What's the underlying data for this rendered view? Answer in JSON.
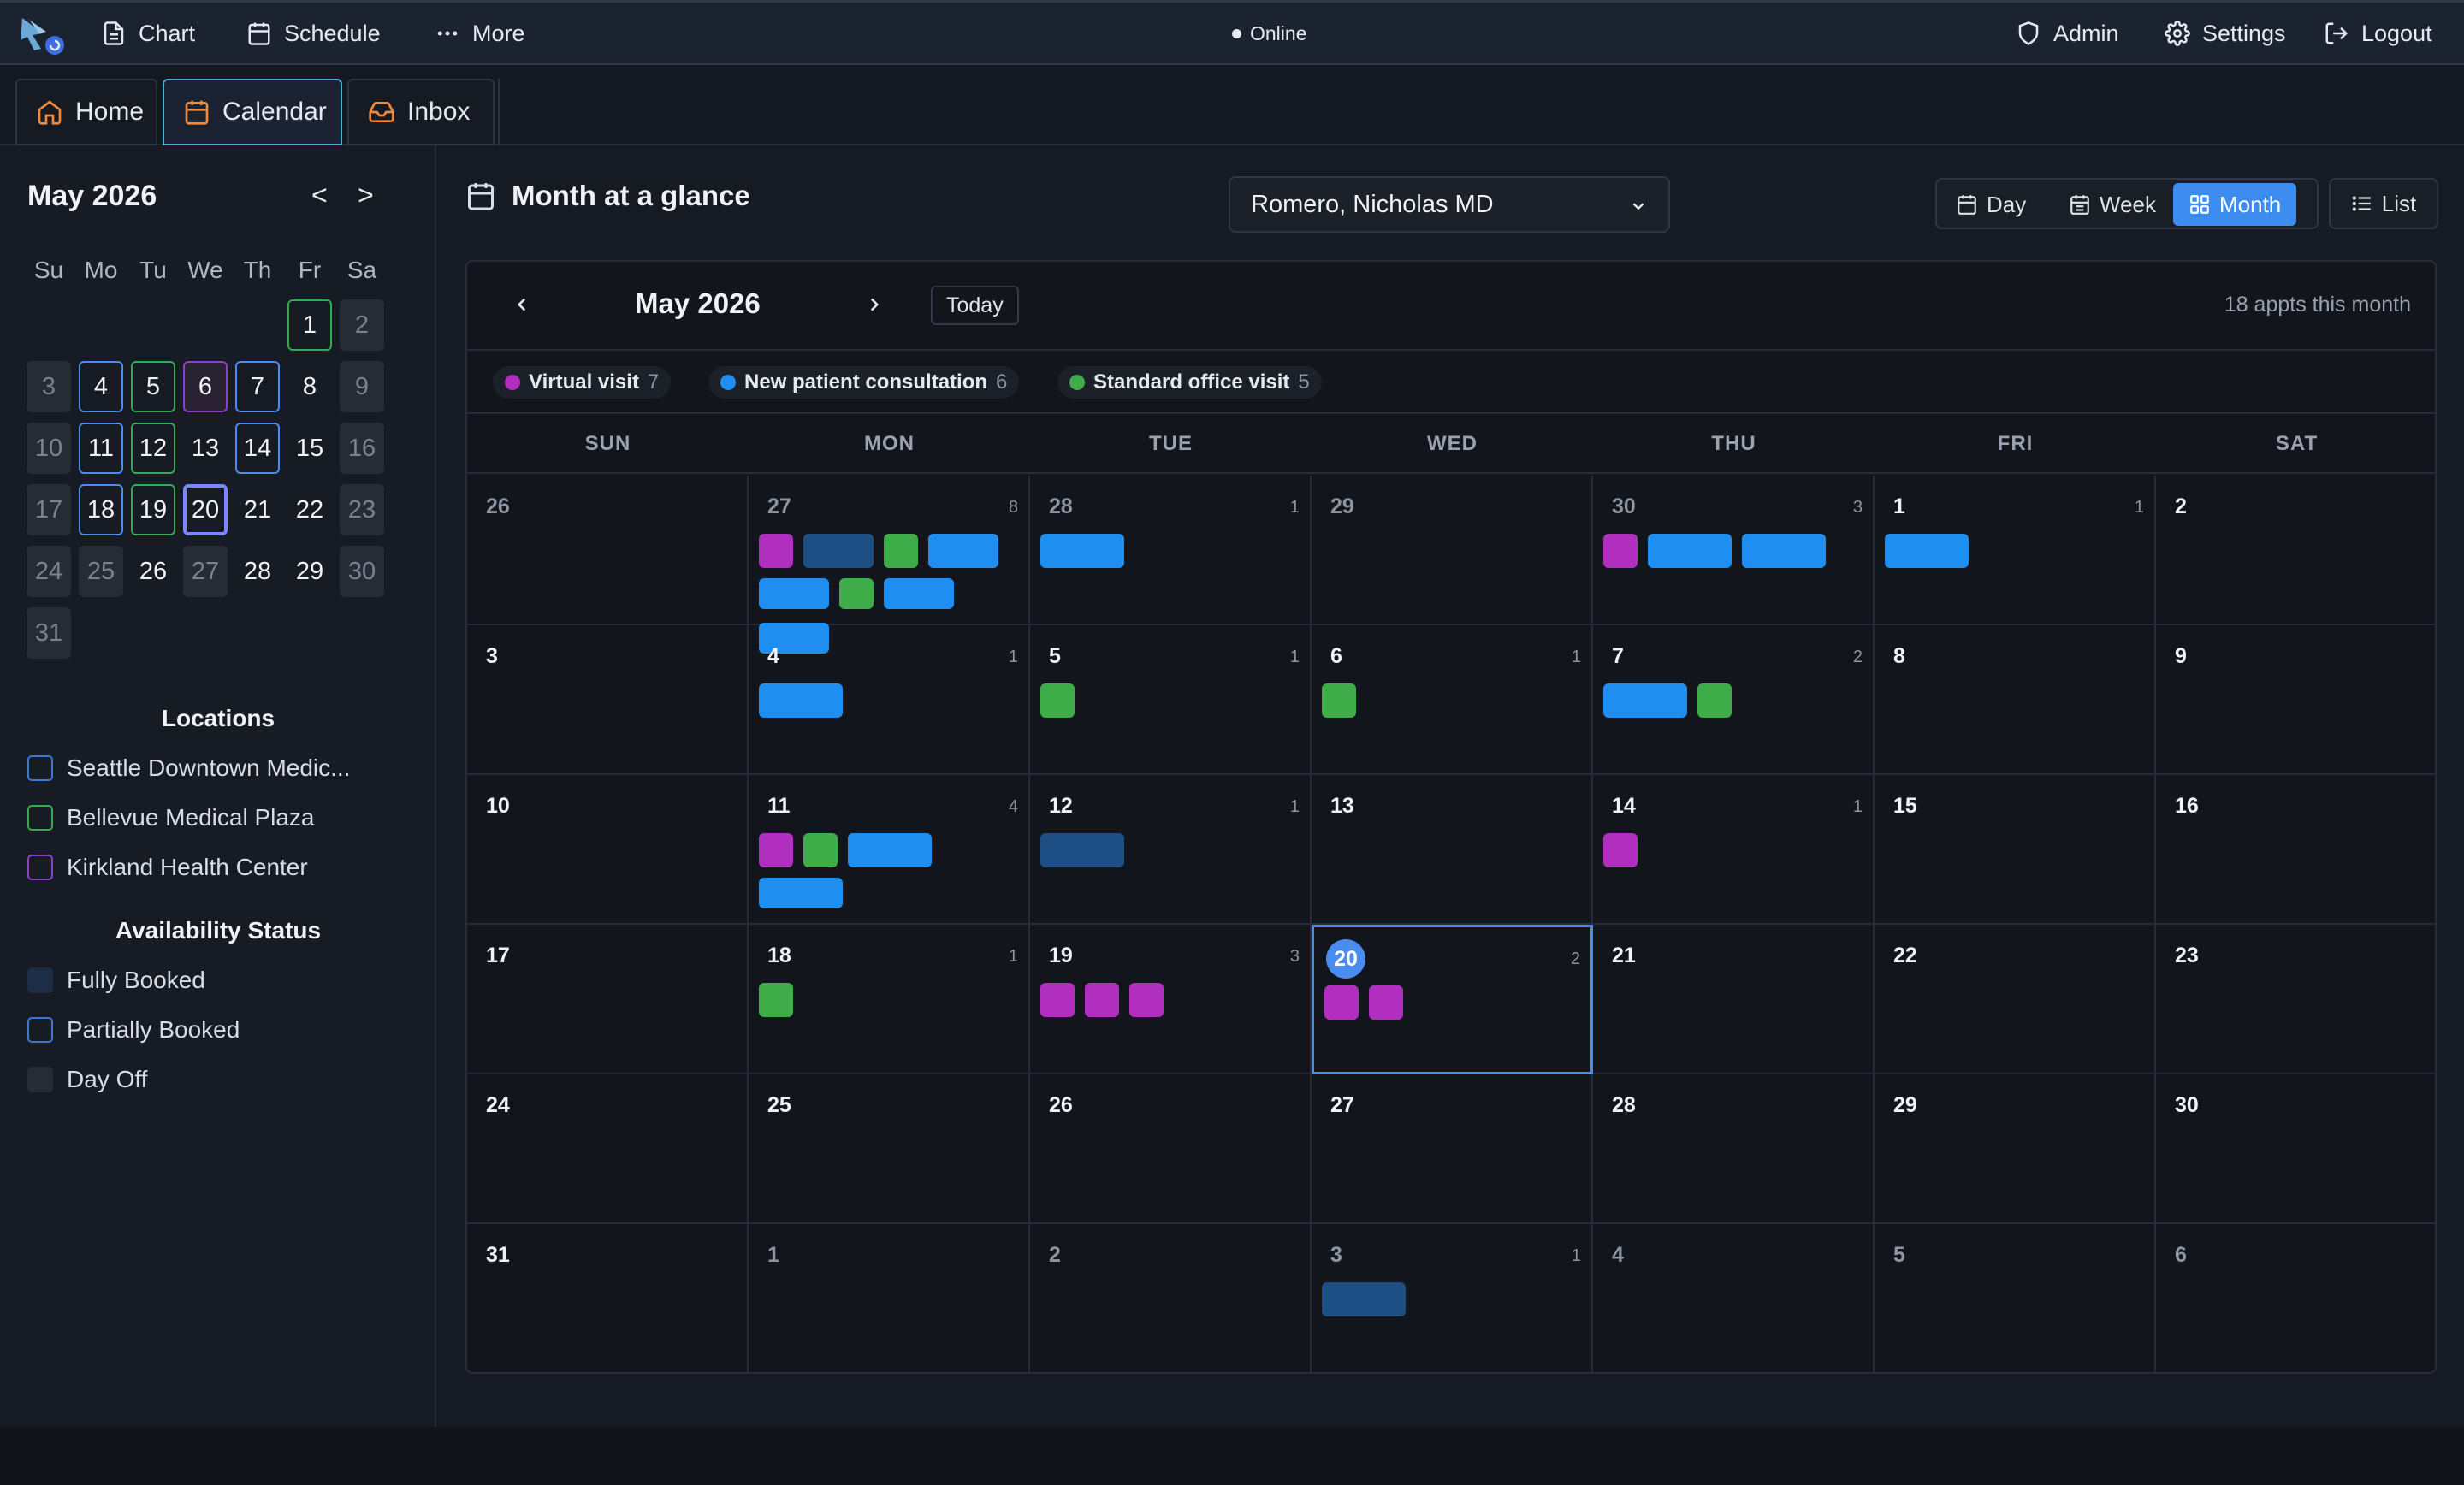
{
  "topbar": {
    "nav": [
      {
        "id": "chart",
        "label": "Chart",
        "icon": "document-icon"
      },
      {
        "id": "schedule",
        "label": "Schedule",
        "icon": "calendar-icon"
      },
      {
        "id": "more",
        "label": "More",
        "icon": "dots-icon"
      }
    ],
    "status": "Online",
    "right": [
      {
        "id": "admin",
        "label": "Admin",
        "icon": "shield-icon"
      },
      {
        "id": "settings",
        "label": "Settings",
        "icon": "gear-icon"
      },
      {
        "id": "logout",
        "label": "Logout",
        "icon": "logout-icon"
      }
    ]
  },
  "tabs": [
    {
      "label": "Home",
      "icon": "home-icon",
      "active": false
    },
    {
      "label": "Calendar",
      "icon": "calendar-icon",
      "active": true
    },
    {
      "label": "Inbox",
      "icon": "inbox-icon",
      "active": false
    }
  ],
  "sidebar": {
    "mini_title": "May 2026",
    "prev": "<",
    "next": ">",
    "weekdays": [
      "Su",
      "Mo",
      "Tu",
      "We",
      "Th",
      "Fr",
      "Sa"
    ],
    "days": [
      {
        "n": "1",
        "s": "green"
      },
      {
        "n": "2",
        "s": "off"
      },
      {
        "n": "3",
        "s": "off"
      },
      {
        "n": "4",
        "s": "blue"
      },
      {
        "n": "5",
        "s": "green"
      },
      {
        "n": "6",
        "s": "purple"
      },
      {
        "n": "7",
        "s": "blue"
      },
      {
        "n": "8",
        "s": ""
      },
      {
        "n": "9",
        "s": "off"
      },
      {
        "n": "10",
        "s": "off"
      },
      {
        "n": "11",
        "s": "blue"
      },
      {
        "n": "12",
        "s": "green"
      },
      {
        "n": "13",
        "s": ""
      },
      {
        "n": "14",
        "s": "blue"
      },
      {
        "n": "15",
        "s": ""
      },
      {
        "n": "16",
        "s": "off"
      },
      {
        "n": "17",
        "s": "off"
      },
      {
        "n": "18",
        "s": "blue"
      },
      {
        "n": "19",
        "s": "green"
      },
      {
        "n": "20",
        "s": "sel"
      },
      {
        "n": "21",
        "s": ""
      },
      {
        "n": "22",
        "s": ""
      },
      {
        "n": "23",
        "s": "off"
      },
      {
        "n": "24",
        "s": "off"
      },
      {
        "n": "25",
        "s": "off"
      },
      {
        "n": "26",
        "s": ""
      },
      {
        "n": "27",
        "s": "off"
      },
      {
        "n": "28",
        "s": ""
      },
      {
        "n": "29",
        "s": ""
      },
      {
        "n": "30",
        "s": "off"
      },
      {
        "n": "31",
        "s": "off"
      }
    ],
    "locations_title": "Locations",
    "locations": [
      {
        "label": "Seattle Downtown Medic...",
        "color": "#3c78d8"
      },
      {
        "label": "Bellevue Medical Plaza",
        "color": "#2fae4d"
      },
      {
        "label": "Kirkland Health Center",
        "color": "#8a40c8"
      }
    ],
    "availability_title": "Availability Status",
    "availability": [
      {
        "label": "Fully Booked",
        "style": "full"
      },
      {
        "label": "Partially Booked",
        "style": "partial"
      },
      {
        "label": "Day Off",
        "style": "off"
      }
    ]
  },
  "main": {
    "title": "Month at a glance",
    "provider": "Romero, Nicholas MD",
    "views": [
      {
        "label": "Day",
        "active": false
      },
      {
        "label": "Week",
        "active": false
      },
      {
        "label": "Month",
        "active": true
      }
    ],
    "list_label": "List",
    "calendar": {
      "month": "May 2026",
      "today_label": "Today",
      "appt_count": "18 appts this month",
      "legend": [
        {
          "label": "Virtual visit",
          "count": "7",
          "color": "#b02fbf"
        },
        {
          "label": "New patient consultation",
          "count": "6",
          "color": "#1e8ef0"
        },
        {
          "label": "Standard office visit",
          "count": "5",
          "color": "#3fac4a"
        }
      ],
      "weekdays": [
        "SUN",
        "MON",
        "TUE",
        "WED",
        "THU",
        "FRI",
        "SAT"
      ],
      "cells": [
        {
          "d": "26",
          "other": true,
          "count": "",
          "ev": []
        },
        {
          "d": "27",
          "other": true,
          "count": "8",
          "ev": [
            [
              "purple",
              "s"
            ],
            [
              "dark",
              "m"
            ],
            [
              "green",
              "s"
            ],
            [
              "blue",
              "m"
            ],
            [
              "blue",
              "m"
            ],
            [
              "green",
              "s"
            ],
            [
              "blue",
              "m"
            ],
            [
              "blue",
              "m"
            ]
          ]
        },
        {
          "d": "28",
          "other": true,
          "count": "1",
          "ev": [
            [
              "blue",
              "l"
            ]
          ]
        },
        {
          "d": "29",
          "other": true,
          "count": "",
          "ev": []
        },
        {
          "d": "30",
          "other": true,
          "count": "3",
          "ev": [
            [
              "purple",
              "s"
            ],
            [
              "blue",
              "l"
            ],
            [
              "blue",
              "l"
            ]
          ]
        },
        {
          "d": "1",
          "other": false,
          "count": "1",
          "ev": [
            [
              "blue",
              "l"
            ]
          ]
        },
        {
          "d": "2",
          "other": false,
          "count": "",
          "ev": []
        },
        {
          "d": "3",
          "other": false,
          "count": "",
          "ev": []
        },
        {
          "d": "4",
          "other": false,
          "count": "1",
          "ev": [
            [
              "blue",
              "l"
            ]
          ]
        },
        {
          "d": "5",
          "other": false,
          "count": "1",
          "ev": [
            [
              "green",
              "s"
            ]
          ]
        },
        {
          "d": "6",
          "other": false,
          "count": "1",
          "ev": [
            [
              "green",
              "s"
            ]
          ]
        },
        {
          "d": "7",
          "other": false,
          "count": "2",
          "ev": [
            [
              "blue",
              "l"
            ],
            [
              "green",
              "s"
            ]
          ]
        },
        {
          "d": "8",
          "other": false,
          "count": "",
          "ev": []
        },
        {
          "d": "9",
          "other": false,
          "count": "",
          "ev": []
        },
        {
          "d": "10",
          "other": false,
          "count": "",
          "ev": []
        },
        {
          "d": "11",
          "other": false,
          "count": "4",
          "ev": [
            [
              "purple",
              "s"
            ],
            [
              "green",
              "s"
            ],
            [
              "blue",
              "l"
            ],
            [
              "blue",
              "l"
            ]
          ]
        },
        {
          "d": "12",
          "other": false,
          "count": "1",
          "ev": [
            [
              "dark",
              "l"
            ]
          ]
        },
        {
          "d": "13",
          "other": false,
          "count": "",
          "ev": []
        },
        {
          "d": "14",
          "other": false,
          "count": "1",
          "ev": [
            [
              "purple",
              "s"
            ]
          ]
        },
        {
          "d": "15",
          "other": false,
          "count": "",
          "ev": []
        },
        {
          "d": "16",
          "other": false,
          "count": "",
          "ev": []
        },
        {
          "d": "17",
          "other": false,
          "count": "",
          "ev": []
        },
        {
          "d": "18",
          "other": false,
          "count": "1",
          "ev": [
            [
              "green",
              "s"
            ]
          ]
        },
        {
          "d": "19",
          "other": false,
          "count": "3",
          "ev": [
            [
              "purple",
              "s"
            ],
            [
              "purple",
              "s"
            ],
            [
              "purple",
              "s"
            ]
          ]
        },
        {
          "d": "20",
          "other": false,
          "count": "2",
          "today": true,
          "ev": [
            [
              "purple",
              "s"
            ],
            [
              "purple",
              "s"
            ]
          ]
        },
        {
          "d": "21",
          "other": false,
          "count": "",
          "ev": []
        },
        {
          "d": "22",
          "other": false,
          "count": "",
          "ev": []
        },
        {
          "d": "23",
          "other": false,
          "count": "",
          "ev": []
        },
        {
          "d": "24",
          "other": false,
          "count": "",
          "ev": []
        },
        {
          "d": "25",
          "other": false,
          "count": "",
          "ev": []
        },
        {
          "d": "26",
          "other": false,
          "count": "",
          "ev": []
        },
        {
          "d": "27",
          "other": false,
          "count": "",
          "ev": []
        },
        {
          "d": "28",
          "other": false,
          "count": "",
          "ev": []
        },
        {
          "d": "29",
          "other": false,
          "count": "",
          "ev": []
        },
        {
          "d": "30",
          "other": false,
          "count": "",
          "ev": []
        },
        {
          "d": "31",
          "other": false,
          "count": "",
          "ev": []
        },
        {
          "d": "1",
          "other": true,
          "count": "",
          "ev": []
        },
        {
          "d": "2",
          "other": true,
          "count": "",
          "ev": []
        },
        {
          "d": "3",
          "other": true,
          "count": "1",
          "ev": [
            [
              "dark",
              "l"
            ]
          ]
        },
        {
          "d": "4",
          "other": true,
          "count": "",
          "ev": []
        },
        {
          "d": "5",
          "other": true,
          "count": "",
          "ev": []
        },
        {
          "d": "6",
          "other": true,
          "count": "",
          "ev": []
        }
      ]
    }
  }
}
